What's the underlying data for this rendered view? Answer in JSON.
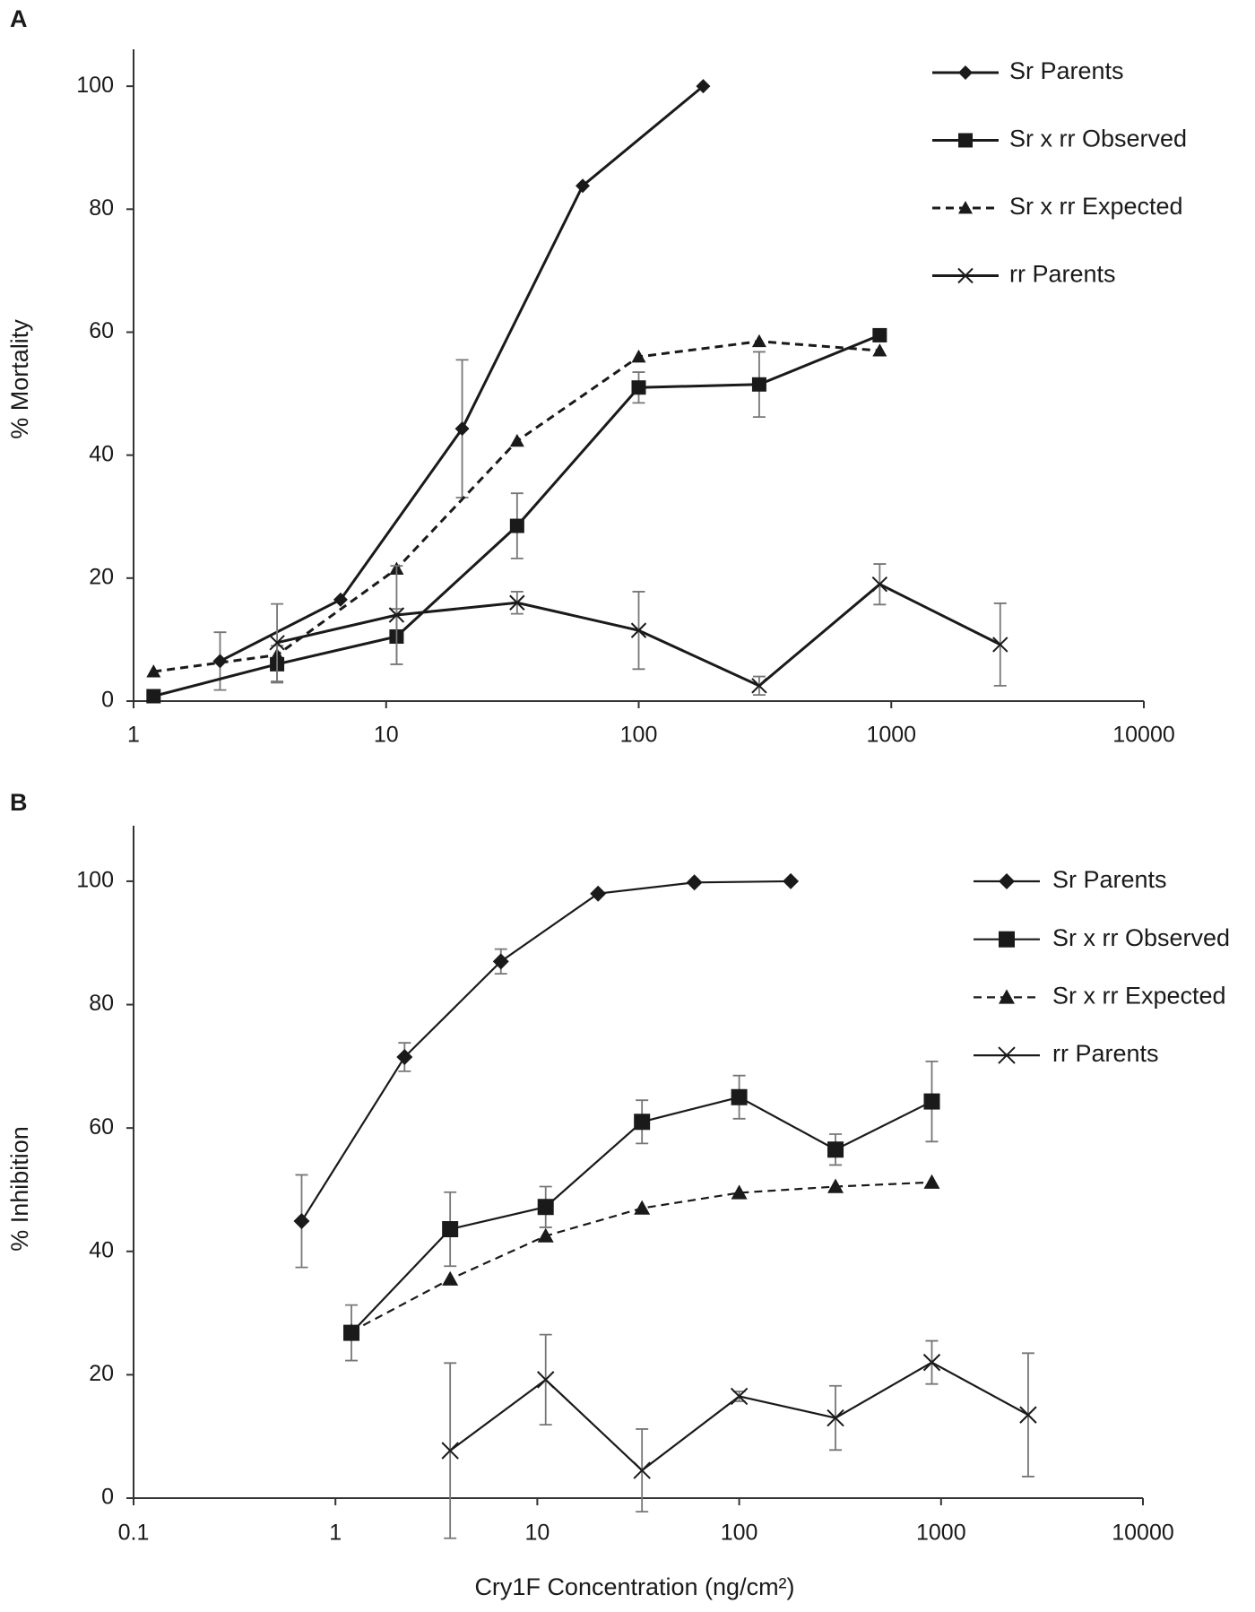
{
  "chart_data": [
    {
      "type": "line",
      "panel_label": "A",
      "ylabel": "% Mortality",
      "xscale": "log",
      "xlim": [
        1,
        10000
      ],
      "xticks": [
        1,
        10,
        100,
        1000,
        10000
      ],
      "ylim": [
        0,
        106
      ],
      "yticks": [
        0,
        20,
        40,
        60,
        80,
        100
      ],
      "legend": "upper right",
      "series": [
        {
          "name": "Sr Parents",
          "color": "#1a1a1a",
          "marker": "diamond",
          "linestyle": "solid",
          "x": [
            2.2,
            6.6,
            20,
            60,
            180
          ],
          "values": [
            6.5,
            16.5,
            44.3,
            83.8,
            100
          ],
          "errors": [
            4.7,
            null,
            11.2,
            null,
            null
          ]
        },
        {
          "name": "Sr x rr Observed",
          "color": "#1a1a1a",
          "marker": "square",
          "linestyle": "solid",
          "x": [
            1.2,
            3.7,
            11,
            33,
            100,
            300,
            900
          ],
          "values": [
            0.8,
            6,
            10.5,
            28.5,
            51,
            51.5,
            59.5
          ],
          "errors": [
            null,
            3,
            4.5,
            5.3,
            2.5,
            5.3,
            null
          ]
        },
        {
          "name": "Sr x rr Expected",
          "color": "#1a1a1a",
          "marker": "triangle",
          "linestyle": "dashed",
          "x": [
            1.2,
            3.7,
            11,
            33,
            100,
            300,
            900
          ],
          "values": [
            4.8,
            7.5,
            21.5,
            42.3,
            56,
            58.5,
            57
          ]
        },
        {
          "name": "rr Parents",
          "color": "#1a1a1a",
          "marker": "x",
          "linestyle": "solid",
          "x": [
            3.7,
            11,
            33,
            100,
            300,
            900,
            2700
          ],
          "values": [
            9.5,
            14,
            16,
            11.5,
            2.5,
            19,
            9.2
          ],
          "errors": [
            6.3,
            8,
            1.8,
            6.3,
            1.5,
            3.3,
            6.7
          ]
        }
      ]
    },
    {
      "type": "line",
      "panel_label": "B",
      "ylabel": "% Inhibition",
      "xlabel": "Cry1F Concentration (ng/cm²)",
      "xscale": "log",
      "xlim": [
        0.1,
        10000
      ],
      "xticks": [
        0.1,
        1,
        10,
        100,
        1000,
        10000
      ],
      "ylim": [
        0,
        109
      ],
      "yticks": [
        0,
        20,
        40,
        60,
        80,
        100
      ],
      "legend": "upper right",
      "series": [
        {
          "name": "Sr Parents",
          "color": "#1a1a1a",
          "marker": "diamond",
          "linestyle": "solid",
          "x": [
            0.68,
            2.2,
            6.6,
            20,
            60,
            180
          ],
          "values": [
            44.9,
            71.5,
            87,
            98,
            99.8,
            100
          ],
          "errors": [
            7.5,
            2.3,
            2,
            null,
            null,
            null
          ]
        },
        {
          "name": "Sr x rr Observed",
          "color": "#1a1a1a",
          "marker": "square",
          "linestyle": "solid",
          "x": [
            1.2,
            3.7,
            11,
            33,
            100,
            300,
            900
          ],
          "values": [
            26.8,
            43.6,
            47.2,
            61,
            65,
            56.5,
            64.3
          ],
          "errors": [
            4.5,
            6,
            3.3,
            3.5,
            3.5,
            2.5,
            6.5
          ]
        },
        {
          "name": "Sr x rr Expected",
          "color": "#1a1a1a",
          "marker": "triangle",
          "linestyle": "dashed",
          "x": [
            1.2,
            3.7,
            11,
            33,
            100,
            300,
            900
          ],
          "values": [
            27,
            35.5,
            42.5,
            47,
            49.5,
            50.5,
            51.2
          ]
        },
        {
          "name": "rr Parents",
          "color": "#1a1a1a",
          "marker": "x",
          "linestyle": "solid",
          "x": [
            3.7,
            11,
            33,
            100,
            300,
            900,
            2700
          ],
          "values": [
            7.7,
            19.2,
            4.5,
            16.5,
            13,
            22,
            13.5
          ],
          "errors": [
            14.2,
            7.3,
            6.7,
            0.8,
            5.2,
            3.5,
            10
          ]
        }
      ]
    }
  ]
}
